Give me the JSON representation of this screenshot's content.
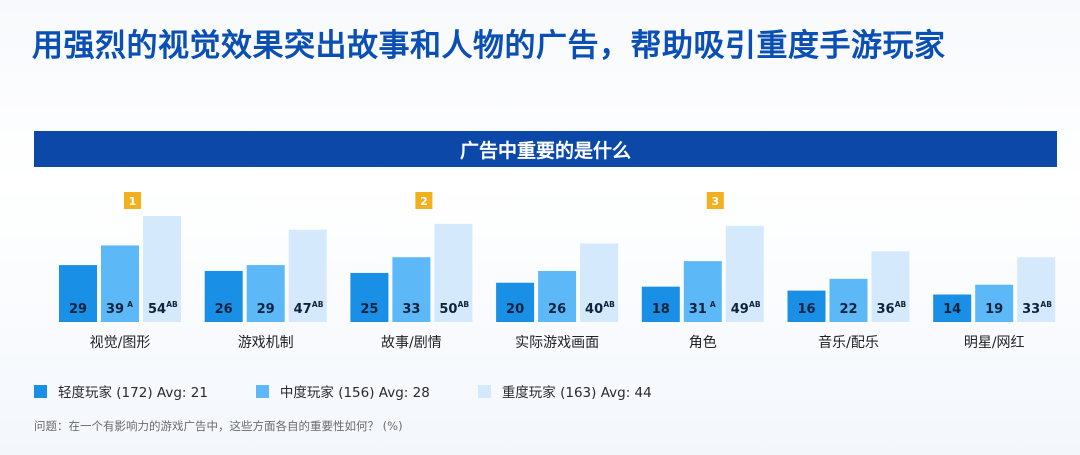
{
  "headline": "用强烈的视觉效果突出故事和人物的广告，帮助吸引重度手游玩家",
  "banner": "广告中重要的是什么",
  "colors": {
    "banner": "#0b48a8",
    "headline": "#0a4fb4",
    "light": "#1a8fe6",
    "medium": "#5cb8f7",
    "heavy": "#d4e9fb",
    "rank_badge": "#f2b01e"
  },
  "legend": [
    {
      "label": "轻度玩家 (172) Avg: 21",
      "color_key": "light"
    },
    {
      "label": "中度玩家 (156) Avg: 28",
      "color_key": "medium"
    },
    {
      "label": "重度玩家 (163) Avg: 44",
      "color_key": "heavy"
    }
  ],
  "footnote": "问题：在一个有影响力的游戏广告中，这些方面各自的重要性如何？ (%)",
  "chart_data": {
    "type": "bar",
    "categories": [
      "视觉/图形",
      "游戏机制",
      "故事/剧情",
      "实际游戏画面",
      "角色",
      "音乐/配乐",
      "明星/网红"
    ],
    "series": [
      {
        "name": "轻度玩家",
        "values": [
          29,
          26,
          25,
          20,
          18,
          16,
          14
        ],
        "marks": [
          "",
          "",
          "",
          "",
          "",
          "",
          ""
        ]
      },
      {
        "name": "中度玩家",
        "values": [
          39,
          29,
          33,
          26,
          31,
          22,
          19
        ],
        "marks": [
          "A",
          "",
          "",
          "",
          "A",
          "",
          ""
        ]
      },
      {
        "name": "重度玩家",
        "values": [
          54,
          47,
          50,
          40,
          49,
          36,
          33
        ],
        "marks": [
          "AB",
          "AB",
          "AB",
          "AB",
          "AB",
          "AB",
          "AB"
        ]
      }
    ],
    "ranks": [
      {
        "category": "视觉/图形",
        "rank": "1"
      },
      {
        "category": "故事/剧情",
        "rank": "2"
      },
      {
        "category": "角色",
        "rank": "3"
      }
    ],
    "ylim": [
      0,
      60
    ]
  }
}
